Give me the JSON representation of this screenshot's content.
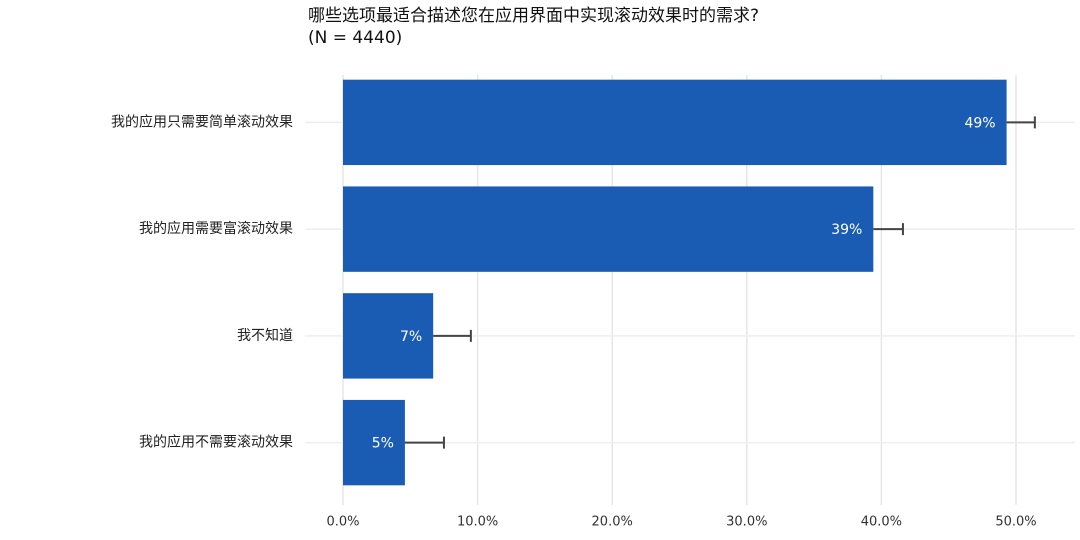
{
  "chart_data": {
    "type": "bar",
    "orientation": "horizontal",
    "title": "哪些选项最适合描述您在应用界面中实现滚动效果时的需求?",
    "subtitle": "(N = 4440)",
    "categories": [
      "我的应用只需要简单滚动效果",
      "我的应用需要富滚动效果",
      "我不知道",
      "我的应用不需要滚动效果"
    ],
    "values": [
      49.3,
      39.4,
      6.7,
      4.6
    ],
    "value_labels": [
      "49%",
      "39%",
      "7%",
      "5%"
    ],
    "errors": [
      2.1,
      2.2,
      2.8,
      2.9
    ],
    "color": "#1a5cb4",
    "xlim": [
      0,
      52
    ],
    "xticks": [
      {
        "value": 0,
        "label": "0.0%"
      },
      {
        "value": 10,
        "label": "10.0%"
      },
      {
        "value": 20,
        "label": "20.0%"
      },
      {
        "value": 30,
        "label": "30.0%"
      },
      {
        "value": 40,
        "label": "40.0%"
      },
      {
        "value": 50,
        "label": "50.0%"
      }
    ],
    "grid": true
  }
}
